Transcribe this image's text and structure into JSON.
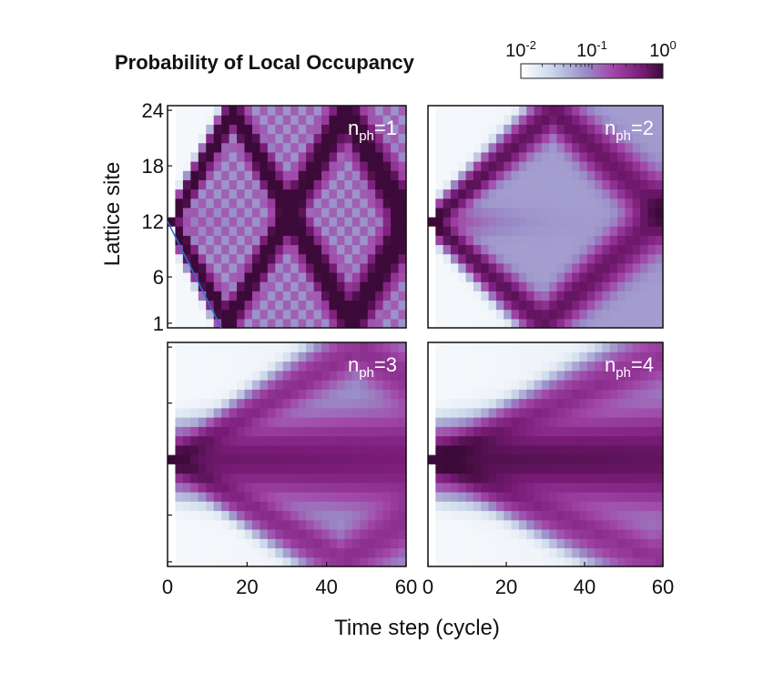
{
  "chart_data": {
    "type": "heatmap",
    "title": "Probability of Local Occupancy",
    "xlabel": "Time step (cycle)",
    "ylabel": "Lattice site",
    "x_range": [
      0,
      60
    ],
    "y_range": [
      1,
      24
    ],
    "x_ticks": [
      "0",
      "20",
      "40",
      "60"
    ],
    "x_ticks_panel0": [
      "0",
      "20",
      "40",
      "60"
    ],
    "y_ticks": [
      "1",
      "6",
      "12",
      "18",
      "24"
    ],
    "scale": "log",
    "colorbar": {
      "min": 0.01,
      "max": 1,
      "labels": [
        {
          "base": "10",
          "exp": "-2",
          "value": 0.01
        },
        {
          "base": "10",
          "exp": "-1",
          "value": 0.1
        },
        {
          "base": "10",
          "exp": "0",
          "value": 1
        }
      ],
      "colors": [
        "#ffffff",
        "#cfdcec",
        "#9a8ec8",
        "#a147a8",
        "#7a1c78",
        "#3c0a38"
      ]
    },
    "initial_site": 12,
    "panels": [
      {
        "id": "nph1",
        "label_base": "n",
        "label_sub": "ph",
        "label_tail": "=1",
        "n_ph": 1
      },
      {
        "id": "nph2",
        "label_base": "n",
        "label_sub": "ph",
        "label_tail": "=2",
        "n_ph": 2
      },
      {
        "id": "nph3",
        "label_base": "n",
        "label_sub": "ph",
        "label_tail": "=3",
        "n_ph": 3
      },
      {
        "id": "nph4",
        "label_base": "n",
        "label_sub": "ph",
        "label_tail": "=4",
        "n_ph": 4
      }
    ]
  }
}
